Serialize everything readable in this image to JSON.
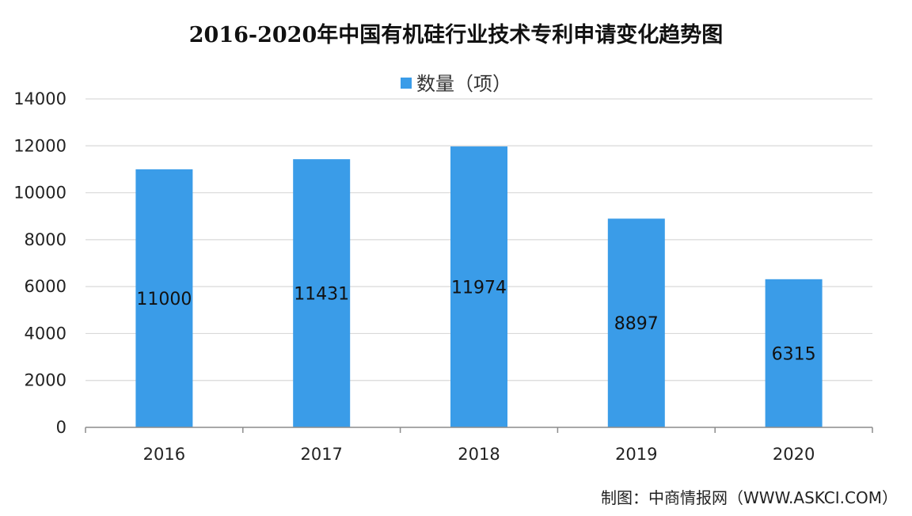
{
  "chart_data": {
    "type": "bar",
    "title": "2016-2020年中国有机硅行业技术专利申请变化趋势图",
    "categories": [
      "2016",
      "2017",
      "2018",
      "2019",
      "2020"
    ],
    "series": [
      {
        "name": "数量（项）",
        "values": [
          11000,
          11431,
          11974,
          8897,
          6315
        ],
        "color": "#3a9ce8"
      }
    ],
    "data_labels": [
      "11000",
      "11431",
      "11974",
      "8897",
      "6315"
    ],
    "y_ticks": [
      "0",
      "2000",
      "4000",
      "6000",
      "8000",
      "10000",
      "12000",
      "14000"
    ],
    "ylim": [
      0,
      14000
    ],
    "xlabel": "",
    "ylabel": "",
    "grid": true,
    "legend_position": "top-center"
  },
  "source": "制图：中商情报网（WWW.ASKCI.COM）",
  "colors": {
    "bar": "#3a9ce8",
    "grid": "#d9d9d9",
    "axis": "#8c8c8c"
  }
}
